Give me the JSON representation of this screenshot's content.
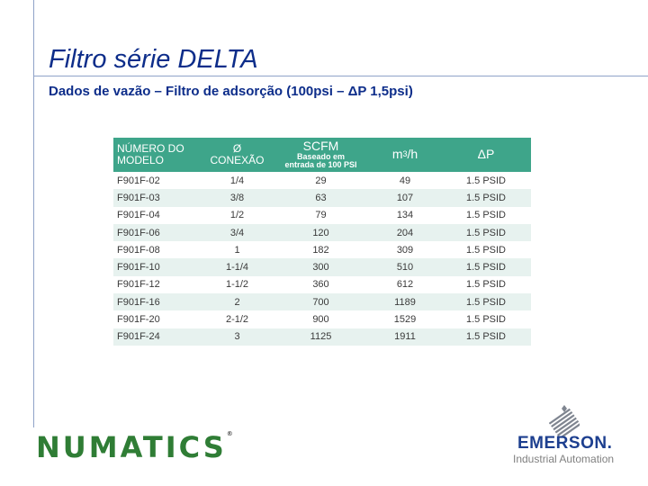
{
  "slide": {
    "title": "Filtro série DELTA",
    "subtitle": "Dados de vazão – Filtro de adsorção (100psi – ΔP 1,5psi)"
  },
  "table": {
    "headers": {
      "model_line1": "NÚMERO DO",
      "model_line2": "MODELO",
      "conn_line1": "Ø",
      "conn_line2": "CONEXÃO",
      "scfm_main": "SCFM",
      "scfm_sub1": "Baseado em",
      "scfm_sub2": "entrada de 100 PSI",
      "m3h_base": "m",
      "m3h_sup": "3",
      "m3h_unit": "/h",
      "dp": "ΔP"
    },
    "rows": [
      {
        "model": "F901F-02",
        "conn": "1/4",
        "scfm": "29",
        "m3h": "49",
        "dp": "1.5 PSID"
      },
      {
        "model": "F901F-03",
        "conn": "3/8",
        "scfm": "63",
        "m3h": "107",
        "dp": "1.5 PSID"
      },
      {
        "model": "F901F-04",
        "conn": "1/2",
        "scfm": "79",
        "m3h": "134",
        "dp": "1.5 PSID"
      },
      {
        "model": "F901F-06",
        "conn": "3/4",
        "scfm": "120",
        "m3h": "204",
        "dp": "1.5 PSID"
      },
      {
        "model": "F901F-08",
        "conn": "1",
        "scfm": "182",
        "m3h": "309",
        "dp": "1.5 PSID"
      },
      {
        "model": "F901F-10",
        "conn": "1-1/4",
        "scfm": "300",
        "m3h": "510",
        "dp": "1.5 PSID"
      },
      {
        "model": "F901F-12",
        "conn": "1-1/2",
        "scfm": "360",
        "m3h": "612",
        "dp": "1.5 PSID"
      },
      {
        "model": "F901F-16",
        "conn": "2",
        "scfm": "700",
        "m3h": "1189",
        "dp": "1.5 PSID"
      },
      {
        "model": "F901F-20",
        "conn": "2-1/2",
        "scfm": "900",
        "m3h": "1529",
        "dp": "1.5 PSID"
      },
      {
        "model": "F901F-24",
        "conn": "3",
        "scfm": "1125",
        "m3h": "1911",
        "dp": "1.5 PSID"
      }
    ]
  },
  "footer": {
    "numatics": "NUMATICS",
    "numatics_tm": "®",
    "emerson_logo_icon": "emerson-logo-icon",
    "emerson_name": "EMERSON.",
    "emerson_sub": "Industrial Automation"
  },
  "colors": {
    "title": "#0d2d8a",
    "table_header": "#3ea58a",
    "row_alt": "#e7f2ef",
    "numatics": "#2f7d35",
    "emerson": "#1d3f8f"
  }
}
